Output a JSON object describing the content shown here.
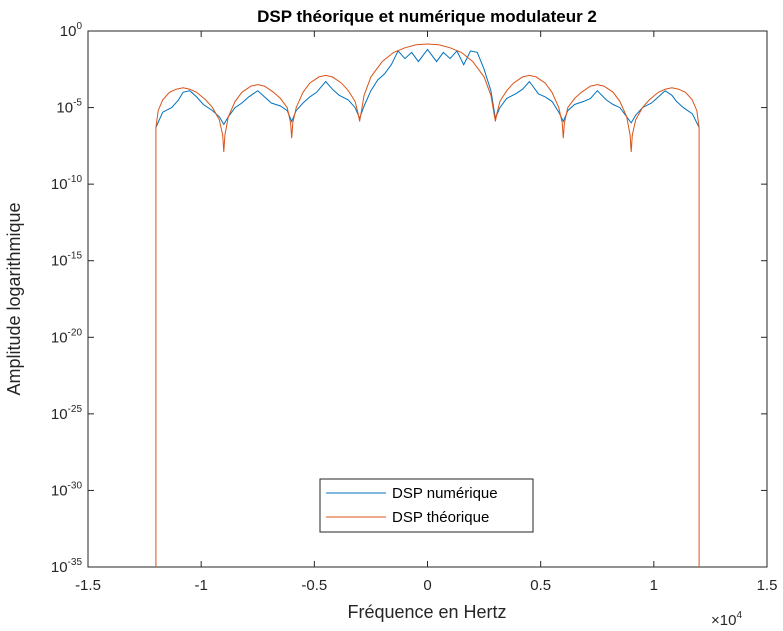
{
  "chart_data": {
    "type": "line",
    "title": "DSP théorique et numérique modulateur 2",
    "xlabel": "Fréquence en Hertz",
    "ylabel": "Amplitude logarithmique",
    "x_exponent_label": "×10",
    "x_exponent": "4",
    "x_scale": 10000,
    "xlim": [
      -1.5,
      1.5
    ],
    "xticks": [
      "-1.5",
      "-1",
      "-0.5",
      "0",
      "0.5",
      "1",
      "1.5"
    ],
    "y_scale": "log",
    "ylim_exponent": [
      -35,
      0
    ],
    "yticks": [
      {
        "base": "10",
        "exp": "0"
      },
      {
        "base": "10",
        "exp": "-5"
      },
      {
        "base": "10",
        "exp": "-10"
      },
      {
        "base": "10",
        "exp": "-15"
      },
      {
        "base": "10",
        "exp": "-20"
      },
      {
        "base": "10",
        "exp": "-25"
      },
      {
        "base": "10",
        "exp": "-30"
      },
      {
        "base": "10",
        "exp": "-35"
      }
    ],
    "grid": false,
    "legend_position": "bottom-center",
    "series": [
      {
        "name": "DSP numérique",
        "color": "#0072bd",
        "x": [
          -1.2,
          -1.17,
          -1.13,
          -1.1,
          -1.08,
          -1.05,
          -1.02,
          -0.99,
          -0.95,
          -0.92,
          -0.9,
          -0.88,
          -0.85,
          -0.82,
          -0.79,
          -0.75,
          -0.72,
          -0.69,
          -0.65,
          -0.62,
          -0.6,
          -0.58,
          -0.55,
          -0.52,
          -0.49,
          -0.45,
          -0.42,
          -0.39,
          -0.35,
          -0.32,
          -0.3,
          -0.28,
          -0.25,
          -0.22,
          -0.19,
          -0.16,
          -0.13,
          -0.1,
          -0.07,
          -0.04,
          0,
          0.04,
          0.07,
          0.1,
          0.13,
          0.16,
          0.19,
          0.22,
          0.25,
          0.28,
          0.3,
          0.32,
          0.35,
          0.39,
          0.42,
          0.45,
          0.49,
          0.52,
          0.55,
          0.58,
          0.6,
          0.62,
          0.65,
          0.69,
          0.72,
          0.75,
          0.79,
          0.82,
          0.85,
          0.88,
          0.9,
          0.92,
          0.95,
          0.99,
          1.02,
          1.05,
          1.08,
          1.1,
          1.13,
          1.17,
          1.2
        ],
        "y_log10": [
          -6.3,
          -5.3,
          -5.0,
          -4.5,
          -4.0,
          -3.9,
          -4.3,
          -4.8,
          -5.2,
          -5.6,
          -6.1,
          -5.6,
          -5.0,
          -4.7,
          -4.3,
          -3.9,
          -4.3,
          -4.7,
          -4.9,
          -5.2,
          -5.9,
          -5.2,
          -4.7,
          -4.3,
          -4.0,
          -3.3,
          -3.8,
          -4.2,
          -4.5,
          -5.0,
          -5.7,
          -4.9,
          -3.9,
          -3.2,
          -2.8,
          -2.2,
          -1.3,
          -1.8,
          -1.4,
          -2.0,
          -1.2,
          -2.0,
          -1.4,
          -1.8,
          -1.3,
          -2.2,
          -1.3,
          -1.4,
          -2.5,
          -3.9,
          -5.7,
          -5.0,
          -4.4,
          -4.1,
          -3.8,
          -3.3,
          -4.1,
          -4.3,
          -4.6,
          -5.3,
          -5.9,
          -5.2,
          -4.8,
          -4.6,
          -4.4,
          -3.9,
          -4.5,
          -4.8,
          -5.0,
          -5.6,
          -6.0,
          -5.5,
          -5.0,
          -4.7,
          -4.3,
          -3.9,
          -4.2,
          -4.6,
          -5.0,
          -5.4,
          -6.3
        ]
      },
      {
        "name": "DSP théorique",
        "color": "#d95319",
        "x": [
          -1.2,
          -1.2,
          -1.19,
          -1.17,
          -1.14,
          -1.11,
          -1.08,
          -1.05,
          -1.02,
          -0.98,
          -0.95,
          -0.92,
          -0.905,
          -0.9,
          -0.895,
          -0.88,
          -0.85,
          -0.82,
          -0.78,
          -0.75,
          -0.72,
          -0.68,
          -0.65,
          -0.62,
          -0.605,
          -0.6,
          -0.595,
          -0.58,
          -0.55,
          -0.52,
          -0.48,
          -0.45,
          -0.42,
          -0.38,
          -0.35,
          -0.32,
          -0.305,
          -0.3,
          -0.295,
          -0.28,
          -0.25,
          -0.2,
          -0.15,
          -0.1,
          -0.05,
          0,
          0.05,
          0.1,
          0.15,
          0.2,
          0.25,
          0.28,
          0.295,
          0.3,
          0.305,
          0.32,
          0.35,
          0.38,
          0.42,
          0.45,
          0.48,
          0.52,
          0.55,
          0.58,
          0.595,
          0.6,
          0.605,
          0.62,
          0.65,
          0.68,
          0.72,
          0.75,
          0.78,
          0.82,
          0.85,
          0.88,
          0.895,
          0.9,
          0.905,
          0.92,
          0.95,
          0.98,
          1.02,
          1.05,
          1.08,
          1.11,
          1.14,
          1.17,
          1.19,
          1.2,
          1.2
        ],
        "y_log10": [
          -35,
          -6.3,
          -5.2,
          -4.5,
          -4.0,
          -3.8,
          -3.7,
          -3.8,
          -4.0,
          -4.5,
          -5.0,
          -5.8,
          -6.8,
          -7.9,
          -6.8,
          -5.6,
          -4.6,
          -4.0,
          -3.6,
          -3.5,
          -3.6,
          -4.0,
          -4.4,
          -5.0,
          -6.0,
          -7.0,
          -6.0,
          -5.0,
          -4.0,
          -3.4,
          -3.0,
          -2.9,
          -3.0,
          -3.4,
          -3.9,
          -4.6,
          -5.5,
          -5.9,
          -5.5,
          -4.2,
          -3.0,
          -2.0,
          -1.4,
          -1.1,
          -0.9,
          -0.85,
          -0.9,
          -1.1,
          -1.4,
          -2.0,
          -3.0,
          -4.2,
          -5.5,
          -5.9,
          -5.5,
          -4.6,
          -3.9,
          -3.4,
          -3.0,
          -2.9,
          -3.0,
          -3.4,
          -4.0,
          -5.0,
          -6.0,
          -7.0,
          -6.0,
          -5.0,
          -4.4,
          -4.0,
          -3.6,
          -3.5,
          -3.6,
          -4.0,
          -4.6,
          -5.6,
          -6.8,
          -7.9,
          -6.8,
          -5.8,
          -5.0,
          -4.5,
          -4.0,
          -3.8,
          -3.7,
          -3.8,
          -4.0,
          -4.5,
          -5.2,
          -6.3,
          -35
        ]
      }
    ]
  }
}
